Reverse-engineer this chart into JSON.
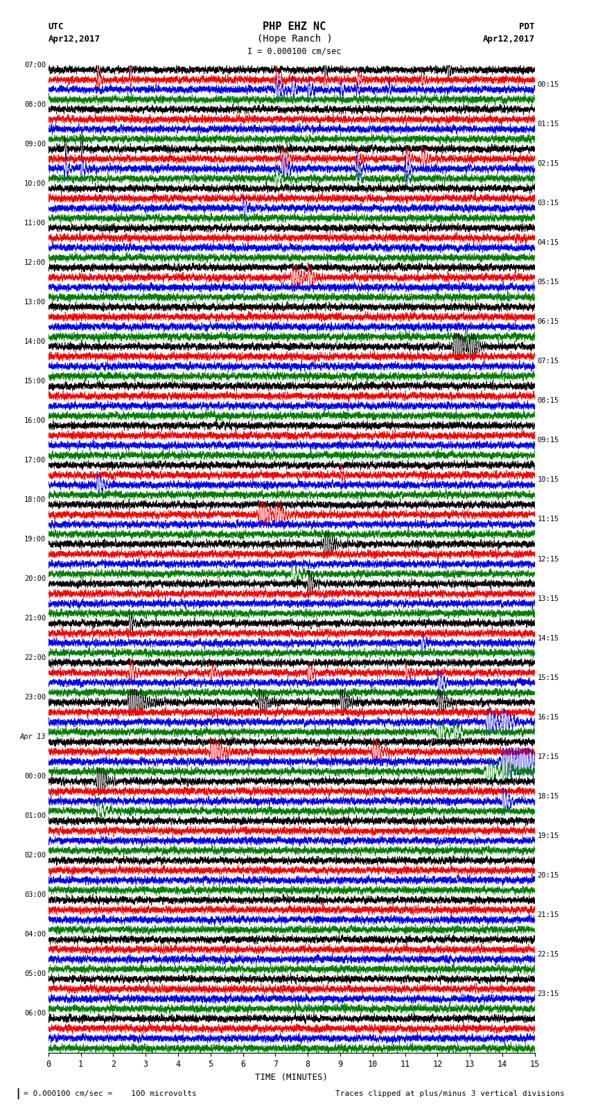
{
  "title_line1": "PHP EHZ NC",
  "title_line2": "(Hope Ranch )",
  "scale_label": "I = 0.000100 cm/sec",
  "left_date": "Apr12,2017",
  "right_date": "Apr12,2017",
  "left_tz": "UTC",
  "right_tz": "PDT",
  "xlabel": "TIME (MINUTES)",
  "bottom_left_note": "= 0.000100 cm/sec =    100 microvolts",
  "bottom_right_note": "Traces clipped at plus/minus 3 vertical divisions",
  "left_times": [
    "07:00",
    "08:00",
    "09:00",
    "10:00",
    "11:00",
    "12:00",
    "13:00",
    "14:00",
    "15:00",
    "16:00",
    "17:00",
    "18:00",
    "19:00",
    "20:00",
    "21:00",
    "22:00",
    "23:00",
    "Apr 13",
    "00:00",
    "01:00",
    "02:00",
    "03:00",
    "04:00",
    "05:00",
    "06:00"
  ],
  "right_times": [
    "00:15",
    "01:15",
    "02:15",
    "03:15",
    "04:15",
    "05:15",
    "06:15",
    "07:15",
    "08:15",
    "09:15",
    "10:15",
    "11:15",
    "12:15",
    "13:15",
    "14:15",
    "15:15",
    "16:15",
    "17:15",
    "18:15",
    "19:15",
    "20:15",
    "21:15",
    "22:15",
    "23:15"
  ],
  "n_rows": 25,
  "traces_per_row": 4,
  "colors": [
    "black",
    "red",
    "blue",
    "green"
  ],
  "bg_color": "white",
  "xlim": [
    0,
    15
  ],
  "xticks": [
    0,
    1,
    2,
    3,
    4,
    5,
    6,
    7,
    8,
    9,
    10,
    11,
    12,
    13,
    14,
    15
  ],
  "n_points": 9000
}
